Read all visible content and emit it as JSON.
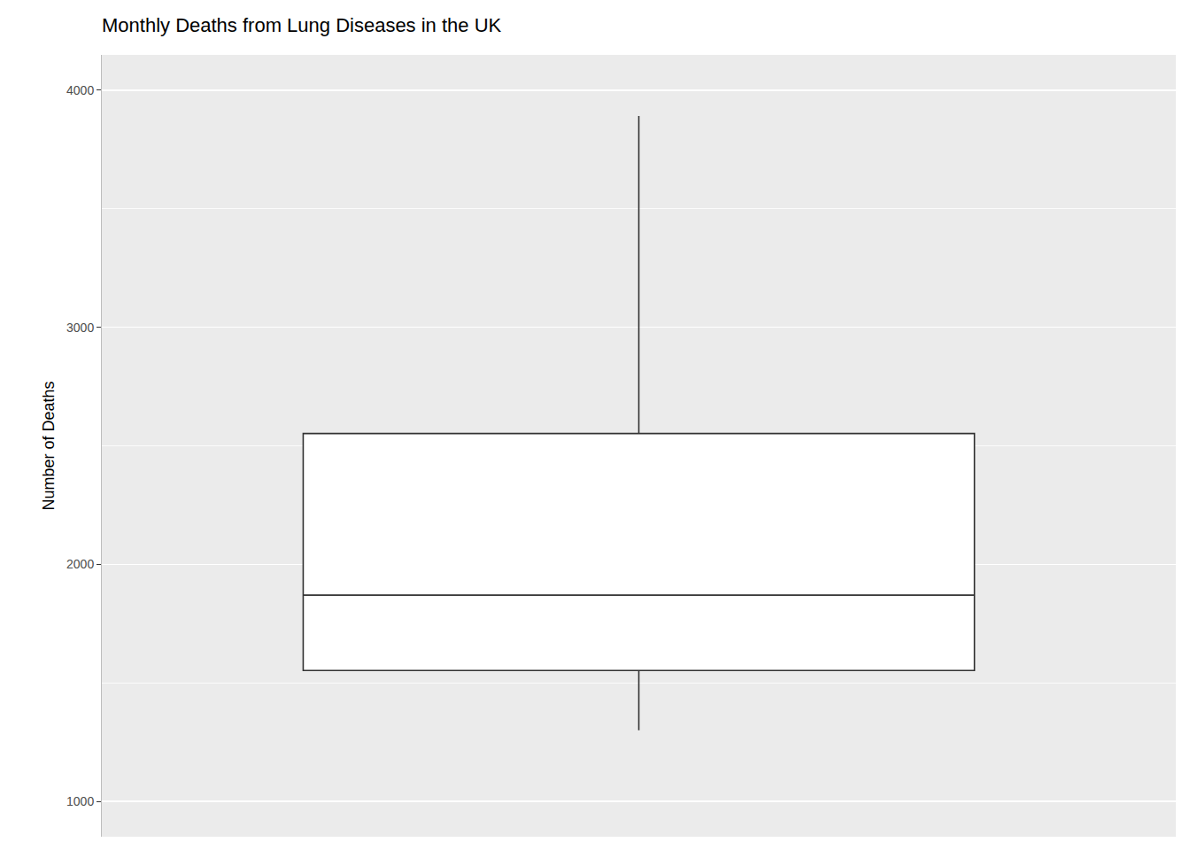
{
  "chart_data": {
    "type": "box",
    "title": "Monthly Deaths from Lung Diseases in the UK",
    "y_label": "Number of Deaths",
    "stats": {
      "min": 1300,
      "q1": 1552,
      "median": 1870,
      "q3": 2552,
      "max": 3891
    },
    "ylim": [
      851,
      4149
    ],
    "yticks": [
      1000,
      2000,
      3000,
      4000
    ],
    "grid": true,
    "tick_labels": "y",
    "color": "#ffffff"
  }
}
